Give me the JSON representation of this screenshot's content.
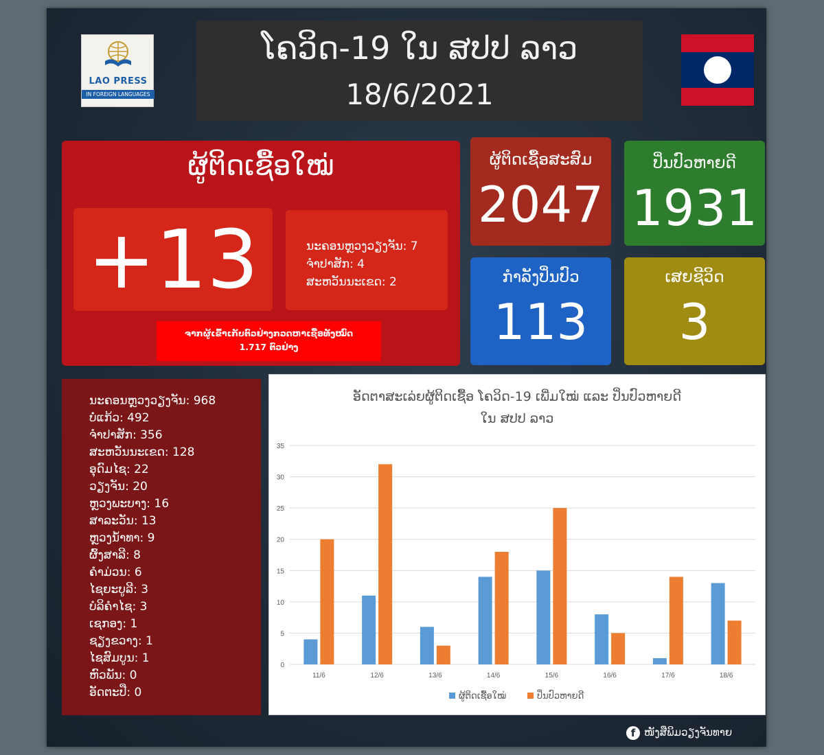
{
  "logo": {
    "brand": "LAO PRESS",
    "subtitle": "IN FOREIGN LANGUAGES"
  },
  "header": {
    "title": "ໂຄວິດ-19 ໃນ ສປປ ລາວ",
    "date": "18/6/2021"
  },
  "new_cases": {
    "title": "ຜູ້ຕິດເຊື້ອໃໝ່",
    "count": "+13",
    "breakdown": [
      "ນະຄອນຫຼວງວຽງຈັນ: 7",
      "ຈຳປາສັກ: 4",
      "ສະຫວັນນະເຂດ: 2"
    ],
    "tests_line1": "ຈາກຜູ້ເຂົ້າເກັບຕົວຢ່າງກວດຫາເຊື້ອທັງໝົດ",
    "tests_line2": "1.717 ຕົວຢ່າງ"
  },
  "stats": {
    "cumulative": {
      "label": "ຜູ້ຕິດເຊື້ອສະສົມ",
      "value": "2047"
    },
    "recovered": {
      "label": "ປິ່ນປົວຫາຍດີ",
      "value": "1931"
    },
    "treating": {
      "label": "ກຳລັງປິ່ນປົວ",
      "value": "113"
    },
    "deaths": {
      "label": "ເສຍຊີວິດ",
      "value": "3"
    }
  },
  "provinces": [
    "ນະຄອນຫຼວງວຽງຈັນ: 968",
    "ບໍ່ແກ້ວ: 492",
    "ຈຳປາສັກ: 356",
    "ສະຫວັນນະເຂດ: 128",
    "ອຸດົມໄຊ: 22",
    "ວຽງຈັນ: 20",
    "ຫຼວງພະບາງ: 16",
    "ສາລະວັນ: 13",
    "ຫຼວງນ້ຳທາ: 9",
    "ຜົ້ງສາລີ: 8",
    "ຄຳມ່ວນ: 6",
    "ໄຊຍະບູລີ: 3",
    "ບໍລິຄຳໄຊ: 3",
    "ເຊກອງ: 1",
    "ຊຽງຂວາງ: 1",
    "ໄຊສົມບູນ: 1",
    "ຫົວພັນ: 0",
    "ອັດຕະປື: 0"
  ],
  "footer": {
    "icon": "facebook-icon",
    "text": "ໜັງສືພິມວຽງຈັນທາຍ"
  },
  "colors": {
    "series_new": "#5b9bd5",
    "series_recovered": "#ed7d31"
  },
  "chart_data": {
    "type": "bar",
    "title_line1": "ອັດຕາສະເລ່ຍຜູ້ຕິດເຊື້ອ ໂຄວິດ-19 ເພີ່ມໃໝ່ ແລະ ປິ່ນປົວຫາຍດີ",
    "title_line2": "ໃນ ສປປ ລາວ",
    "categories": [
      "11/6",
      "12/6",
      "13/6",
      "14/6",
      "15/6",
      "16/6",
      "17/6",
      "18/6"
    ],
    "series": [
      {
        "name": "ຜູ້ຕິດເຊື້ອໃໝ່",
        "values": [
          4,
          11,
          6,
          14,
          15,
          8,
          1,
          13
        ]
      },
      {
        "name": "ປິ່ນປົວຫາຍດີ",
        "values": [
          20,
          32,
          3,
          18,
          25,
          5,
          14,
          7
        ]
      }
    ],
    "yticks": [
      "0",
      "5",
      "10",
      "15",
      "20",
      "25",
      "30",
      "35"
    ],
    "ylim": [
      0,
      35
    ],
    "grid": true,
    "legend_position": "bottom"
  }
}
